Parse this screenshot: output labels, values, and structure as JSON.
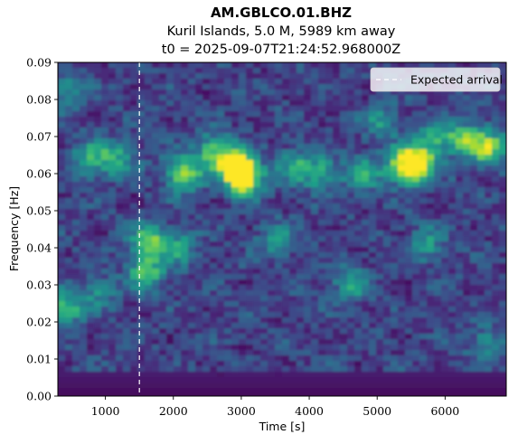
{
  "chart_data": {
    "type": "heatmap",
    "title": "AM.GBLCO.01.BHZ",
    "subtitle": "Kuril Islands, 5.0 M, 5989 km away",
    "subtitle2": "t0 = 2025-09-07T21:24:52.968000Z",
    "xlabel": "Time [s]",
    "ylabel": "Frequency [Hz]",
    "xlim": [
      300,
      6900
    ],
    "ylim": [
      0.0,
      0.09
    ],
    "x_ticks": [
      1000,
      2000,
      3000,
      4000,
      5000,
      6000
    ],
    "x_tick_labels": [
      "1000",
      "2000",
      "3000",
      "4000",
      "5000",
      "6000"
    ],
    "y_ticks": [
      0.0,
      0.01,
      0.02,
      0.03,
      0.04,
      0.05,
      0.06,
      0.07,
      0.08,
      0.09
    ],
    "y_tick_labels": [
      "0.00",
      "0.01",
      "0.02",
      "0.03",
      "0.04",
      "0.05",
      "0.06",
      "0.07",
      "0.08",
      "0.09"
    ],
    "colormap": "viridis",
    "expected_arrival_time": 1500,
    "legend": {
      "position": "top-right",
      "entries": [
        {
          "label": "Expected arrival",
          "style": "dashed",
          "color": "#ffffff"
        }
      ]
    },
    "hotspots": [
      {
        "t": 3050,
        "f": 0.059,
        "level": 1.0
      },
      {
        "t": 2900,
        "f": 0.062,
        "level": 0.8
      },
      {
        "t": 2150,
        "f": 0.06,
        "level": 0.82
      },
      {
        "t": 2600,
        "f": 0.066,
        "level": 0.6
      },
      {
        "t": 5600,
        "f": 0.063,
        "level": 0.92
      },
      {
        "t": 5400,
        "f": 0.062,
        "level": 0.7
      },
      {
        "t": 6650,
        "f": 0.067,
        "level": 0.7
      },
      {
        "t": 6300,
        "f": 0.069,
        "level": 0.55
      },
      {
        "t": 5900,
        "f": 0.07,
        "level": 0.45
      },
      {
        "t": 1650,
        "f": 0.042,
        "level": 0.7
      },
      {
        "t": 1600,
        "f": 0.033,
        "level": 0.6
      },
      {
        "t": 1200,
        "f": 0.064,
        "level": 0.45
      },
      {
        "t": 800,
        "f": 0.064,
        "level": 0.5
      },
      {
        "t": 420,
        "f": 0.024,
        "level": 0.55
      },
      {
        "t": 450,
        "f": 0.082,
        "level": 0.4
      },
      {
        "t": 3800,
        "f": 0.062,
        "level": 0.5
      },
      {
        "t": 4200,
        "f": 0.06,
        "level": 0.45
      },
      {
        "t": 4800,
        "f": 0.06,
        "level": 0.5
      },
      {
        "t": 5050,
        "f": 0.074,
        "level": 0.4
      },
      {
        "t": 4600,
        "f": 0.03,
        "level": 0.4
      },
      {
        "t": 5700,
        "f": 0.041,
        "level": 0.4
      },
      {
        "t": 2100,
        "f": 0.04,
        "level": 0.4
      },
      {
        "t": 6600,
        "f": 0.014,
        "level": 0.35
      },
      {
        "t": 3500,
        "f": 0.042,
        "level": 0.35
      },
      {
        "t": 900,
        "f": 0.028,
        "level": 0.35
      }
    ]
  }
}
